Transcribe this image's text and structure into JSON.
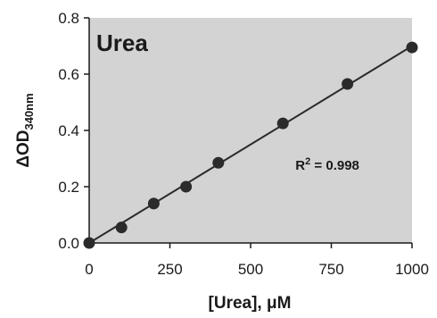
{
  "chart_data": {
    "type": "scatter",
    "title": "Urea",
    "xlabel": "[Urea], μM",
    "ylabel": {
      "main": "ΔOD",
      "subscript": "340nm"
    },
    "xlim": [
      0,
      1000
    ],
    "ylim": [
      0,
      0.8
    ],
    "x_ticks": [
      0,
      250,
      500,
      750,
      1000
    ],
    "y_ticks": [
      0.0,
      0.2,
      0.4,
      0.6,
      0.8
    ],
    "x_tick_labels": [
      "0",
      "250",
      "500",
      "750",
      "1000"
    ],
    "y_tick_labels": [
      "0.0",
      "0.2",
      "0.4",
      "0.6",
      "0.8"
    ],
    "series": [
      {
        "x": [
          0,
          100,
          200,
          300,
          400,
          600,
          800,
          1000
        ],
        "y": [
          0.0,
          0.055,
          0.14,
          0.2,
          0.285,
          0.425,
          0.565,
          0.695
        ]
      }
    ],
    "fit_line": {
      "x": [
        0,
        1000
      ],
      "y": [
        0.0,
        0.7
      ]
    },
    "annotation": {
      "base": "R",
      "superscript": "2",
      "rest": " = 0.998",
      "x": 650,
      "y": 0.27
    },
    "grid": false,
    "colors": {
      "plot_background": "#d3d3d3",
      "marker": "#2b2b2b",
      "line": "#2b2b2b",
      "axis": "#1a1a1a"
    }
  }
}
